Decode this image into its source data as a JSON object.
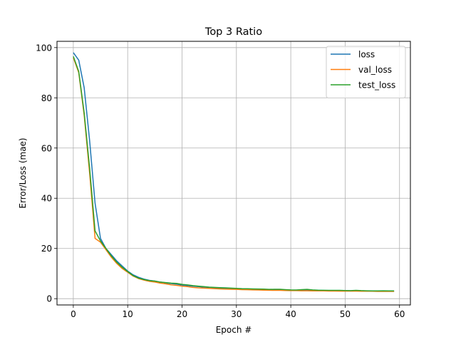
{
  "chart_data": {
    "type": "line",
    "title": "Top 3 Ratio",
    "xlabel": "Epoch #",
    "ylabel": "Error/Loss (mae)",
    "xlim": [
      -3,
      62
    ],
    "ylim": [
      -2.5,
      102.5
    ],
    "xticks": [
      0,
      10,
      20,
      30,
      40,
      50,
      60
    ],
    "yticks": [
      0,
      20,
      40,
      60,
      80,
      100
    ],
    "grid": true,
    "legend_position": "top-right",
    "x": [
      0,
      1,
      2,
      3,
      4,
      5,
      6,
      7,
      8,
      9,
      10,
      11,
      12,
      13,
      14,
      15,
      16,
      17,
      18,
      19,
      20,
      21,
      22,
      23,
      24,
      25,
      26,
      27,
      28,
      29,
      30,
      31,
      32,
      33,
      34,
      35,
      36,
      37,
      38,
      39,
      40,
      41,
      42,
      43,
      44,
      45,
      46,
      47,
      48,
      49,
      50,
      51,
      52,
      53,
      54,
      55,
      56,
      57,
      58,
      59
    ],
    "series": [
      {
        "name": "loss",
        "color": "#1f77b4",
        "values": [
          98.0,
          95.0,
          84.0,
          63.0,
          38.0,
          24.0,
          20.0,
          17.5,
          15.0,
          13.0,
          11.0,
          9.5,
          8.5,
          7.8,
          7.3,
          7.0,
          6.6,
          6.3,
          6.0,
          5.8,
          5.4,
          5.2,
          5.0,
          4.8,
          4.6,
          4.5,
          4.3,
          4.2,
          4.1,
          4.0,
          3.9,
          3.85,
          3.8,
          3.75,
          3.7,
          3.65,
          3.6,
          3.55,
          3.5,
          3.45,
          3.4,
          3.4,
          3.35,
          3.35,
          3.3,
          3.3,
          3.25,
          3.25,
          3.2,
          3.2,
          3.2,
          3.15,
          3.15,
          3.1,
          3.1,
          3.1,
          3.05,
          3.05,
          3.0,
          3.0
        ]
      },
      {
        "name": "val_loss",
        "color": "#ff7f0e",
        "values": [
          96.0,
          90.0,
          73.0,
          50.0,
          24.0,
          22.5,
          19.5,
          16.5,
          14.0,
          12.0,
          10.5,
          9.0,
          8.0,
          7.4,
          6.9,
          6.6,
          6.2,
          5.9,
          5.5,
          5.3,
          5.0,
          4.8,
          4.5,
          4.3,
          4.2,
          4.1,
          4.0,
          3.9,
          3.8,
          3.75,
          3.7,
          3.6,
          3.55,
          3.5,
          3.45,
          3.4,
          3.35,
          3.3,
          3.3,
          3.25,
          3.2,
          3.2,
          3.15,
          3.15,
          3.1,
          3.1,
          3.1,
          3.05,
          3.05,
          3.0,
          3.0,
          3.0,
          3.0,
          2.95,
          2.95,
          2.95,
          2.9,
          2.9,
          2.9,
          2.9
        ]
      },
      {
        "name": "test_loss",
        "color": "#2ca02c",
        "values": [
          96.5,
          90.5,
          74.0,
          52.0,
          27.0,
          23.0,
          20.0,
          17.0,
          14.5,
          12.5,
          10.8,
          9.2,
          8.2,
          7.6,
          7.2,
          7.0,
          6.6,
          6.4,
          6.2,
          6.1,
          5.7,
          5.5,
          5.2,
          5.0,
          4.8,
          4.6,
          4.5,
          4.4,
          4.3,
          4.2,
          4.1,
          4.0,
          3.95,
          3.9,
          3.85,
          3.8,
          3.7,
          3.75,
          3.75,
          3.6,
          3.5,
          3.45,
          3.6,
          3.7,
          3.5,
          3.4,
          3.35,
          3.3,
          3.3,
          3.3,
          3.25,
          3.2,
          3.3,
          3.2,
          3.15,
          3.1,
          3.1,
          3.15,
          3.1,
          3.1
        ]
      }
    ]
  }
}
